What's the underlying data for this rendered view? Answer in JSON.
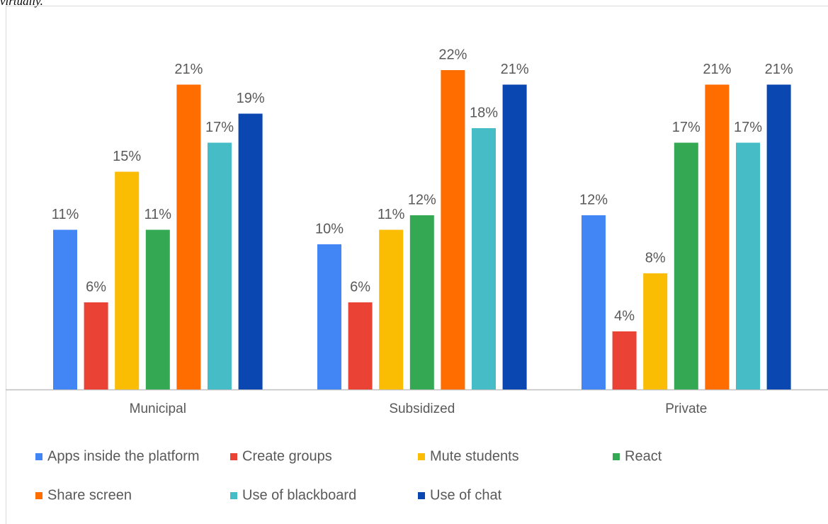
{
  "caption": "virtually.",
  "chart_data": {
    "type": "bar",
    "categories": [
      "Municipal",
      "Subsidized",
      "Private"
    ],
    "series": [
      {
        "name": "Apps inside the platform",
        "color": "#4285f4",
        "values": [
          11,
          10,
          12
        ],
        "value_labels": [
          "11%",
          "10%",
          "12%"
        ]
      },
      {
        "name": "Create groups",
        "color": "#ea4335",
        "values": [
          6,
          6,
          4
        ],
        "value_labels": [
          "6%",
          "6%",
          "4%"
        ]
      },
      {
        "name": "Mute students",
        "color": "#fbbc04",
        "values": [
          15,
          11,
          8
        ],
        "value_labels": [
          "15%",
          "11%",
          "8%"
        ]
      },
      {
        "name": "React",
        "color": "#34a853",
        "values": [
          11,
          12,
          17
        ],
        "value_labels": [
          "11%",
          "12%",
          "17%"
        ]
      },
      {
        "name": "Share screen",
        "color": "#ff6d01",
        "values": [
          21,
          22,
          21
        ],
        "value_labels": [
          "21%",
          "22%",
          "21%"
        ]
      },
      {
        "name": "Use of blackboard",
        "color": "#46bdc6",
        "values": [
          17,
          18,
          17
        ],
        "value_labels": [
          "17%",
          "18%",
          "17%"
        ]
      },
      {
        "name": "Use of chat",
        "color": "#0b47b0",
        "values": [
          19,
          21,
          21
        ],
        "value_labels": [
          "19%",
          "21%",
          "21%"
        ]
      }
    ],
    "legend": "bottom"
  }
}
